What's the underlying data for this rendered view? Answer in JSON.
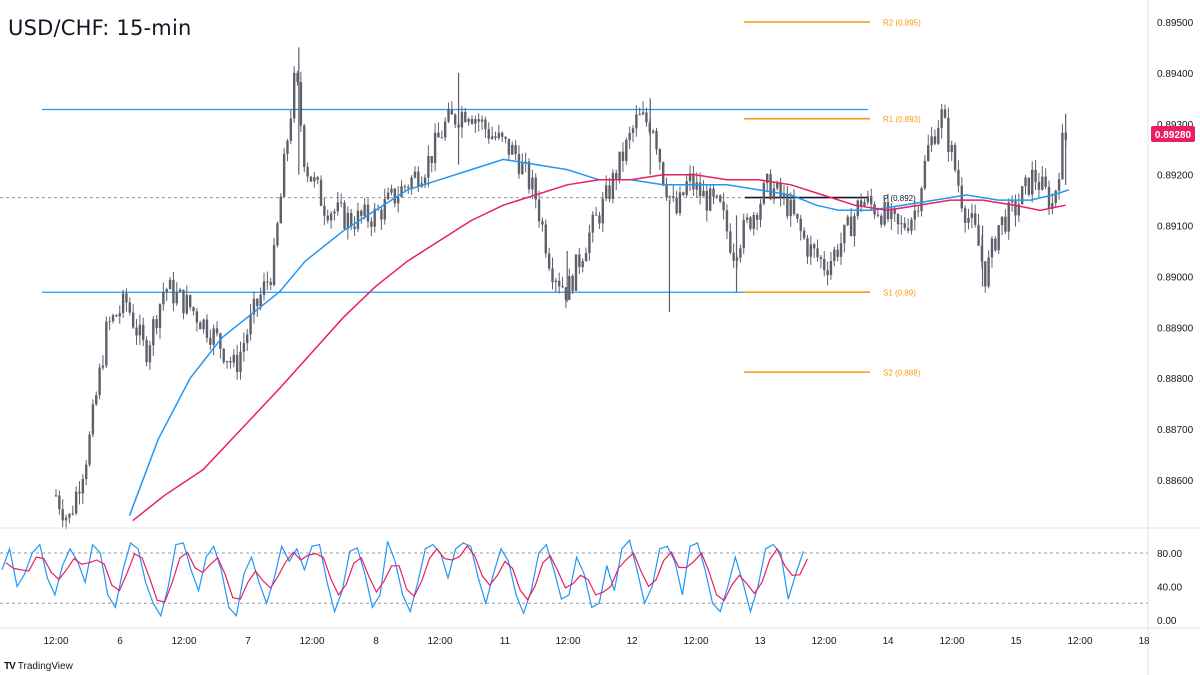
{
  "title": "USD/CHF: 15-min",
  "brand": {
    "logo": "TV",
    "name": "TradingView"
  },
  "chart_data": {
    "type": "candlestick",
    "symbol": "USD/CHF",
    "timeframe": "15-min",
    "price_axis": {
      "ticks": [
        "0.89500",
        "0.89400",
        "0.89300",
        "0.89200",
        "0.89100",
        "0.89000",
        "0.88900",
        "0.88800",
        "0.88700",
        "0.88600"
      ],
      "range": [
        0.8852,
        0.8955
      ]
    },
    "last_price": {
      "value": 0.8928,
      "label": "0.89280",
      "color": "#e91e63"
    },
    "time_axis": {
      "labels": [
        "12:00",
        "6",
        "12:00",
        "7",
        "12:00",
        "8",
        "12:00",
        "11",
        "12:00",
        "12",
        "12:00",
        "13",
        "12:00",
        "14",
        "12:00",
        "15",
        "12:00",
        "18"
      ],
      "range": [
        0,
        36
      ]
    },
    "levels": [
      {
        "name": "R2",
        "label": "R2 (0.895)",
        "value": 0.895,
        "color": "#f39c12"
      },
      {
        "name": "R1",
        "label": "R1 (0.893)",
        "value": 0.8931,
        "color": "#f39c12"
      },
      {
        "name": "P",
        "label": "P (0.892)",
        "value": 0.89155,
        "color": "#131722"
      },
      {
        "name": "S1",
        "label": "S1 (0.89)",
        "value": 0.88969,
        "color": "#f39c12"
      },
      {
        "name": "S2",
        "label": "S2 (0.888)",
        "value": 0.88812,
        "color": "#f39c12"
      }
    ],
    "range_lines": [
      {
        "name": "resistance",
        "value": 0.89328,
        "color": "#2196f3"
      },
      {
        "name": "support",
        "value": 0.88969,
        "color": "#2196f3"
      }
    ],
    "price_path": [
      [
        0,
        0.8857
      ],
      [
        0.4,
        0.8852
      ],
      [
        1.0,
        0.8866
      ],
      [
        1.6,
        0.889
      ],
      [
        2.2,
        0.8895
      ],
      [
        2.8,
        0.8885
      ],
      [
        3.4,
        0.8898
      ],
      [
        4.2,
        0.8894
      ],
      [
        5.0,
        0.8888
      ],
      [
        5.6,
        0.8882
      ],
      [
        6.2,
        0.8893
      ],
      [
        6.8,
        0.8902
      ],
      [
        7.2,
        0.8925
      ],
      [
        7.5,
        0.894
      ],
      [
        7.8,
        0.8922
      ],
      [
        8.4,
        0.8914
      ],
      [
        9.2,
        0.8911
      ],
      [
        10.0,
        0.8912
      ],
      [
        10.8,
        0.8917
      ],
      [
        11.6,
        0.8922
      ],
      [
        12.2,
        0.893
      ],
      [
        12.9,
        0.8933
      ],
      [
        13.6,
        0.8928
      ],
      [
        14.4,
        0.8924
      ],
      [
        15.0,
        0.8916
      ],
      [
        15.5,
        0.8902
      ],
      [
        16.0,
        0.8897
      ],
      [
        16.6,
        0.8907
      ],
      [
        17.2,
        0.8915
      ],
      [
        17.7,
        0.8923
      ],
      [
        18.2,
        0.8931
      ],
      [
        18.7,
        0.893
      ],
      [
        19.0,
        0.892
      ],
      [
        19.4,
        0.8912
      ],
      [
        19.8,
        0.8919
      ],
      [
        20.2,
        0.8916
      ],
      [
        20.8,
        0.8913
      ],
      [
        21.2,
        0.8905
      ],
      [
        21.7,
        0.8911
      ],
      [
        22.3,
        0.8918
      ],
      [
        22.9,
        0.8914
      ],
      [
        23.5,
        0.8906
      ],
      [
        24.1,
        0.8902
      ],
      [
        24.7,
        0.8908
      ],
      [
        25.2,
        0.8915
      ],
      [
        25.8,
        0.8913
      ],
      [
        26.4,
        0.8909
      ],
      [
        26.9,
        0.8913
      ],
      [
        27.3,
        0.8925
      ],
      [
        27.7,
        0.8932
      ],
      [
        28.0,
        0.8925
      ],
      [
        28.4,
        0.8914
      ],
      [
        28.8,
        0.8908
      ],
      [
        29.1,
        0.89
      ],
      [
        29.5,
        0.891
      ],
      [
        30.0,
        0.8913
      ],
      [
        30.6,
        0.892
      ],
      [
        31.2,
        0.8914
      ],
      [
        31.5,
        0.8926
      ],
      [
        31.7,
        0.8928
      ]
    ],
    "spikes": [
      {
        "x": 7.6,
        "high": 0.8945,
        "low": 0.892
      },
      {
        "x": 12.6,
        "high": 0.894,
        "low": 0.8922
      },
      {
        "x": 16.0,
        "high": 0.8905,
        "low": 0.8895
      },
      {
        "x": 18.6,
        "high": 0.8935,
        "low": 0.892
      },
      {
        "x": 19.2,
        "high": 0.8915,
        "low": 0.8893
      },
      {
        "x": 21.3,
        "high": 0.8912,
        "low": 0.8897
      },
      {
        "x": 29.0,
        "high": 0.891,
        "low": 0.8898
      },
      {
        "x": 31.6,
        "high": 0.8932,
        "low": 0.8918
      }
    ],
    "series": [
      {
        "name": "",
        "color": "#2196f3",
        "points": [
          [
            2.3,
            0.8853
          ],
          [
            3.2,
            0.8868
          ],
          [
            4.2,
            0.888
          ],
          [
            5.2,
            0.8888
          ],
          [
            6.2,
            0.8893
          ],
          [
            7.0,
            0.8897
          ],
          [
            7.8,
            0.8903
          ],
          [
            9.0,
            0.8909
          ],
          [
            10.0,
            0.8913
          ],
          [
            11.0,
            0.8917
          ],
          [
            12.0,
            0.8919
          ],
          [
            13.0,
            0.8921
          ],
          [
            14.0,
            0.8923
          ],
          [
            15.0,
            0.8922
          ],
          [
            16.0,
            0.8921
          ],
          [
            17.0,
            0.8919
          ],
          [
            18.0,
            0.8919
          ],
          [
            19.0,
            0.8918
          ],
          [
            20.0,
            0.8918
          ],
          [
            21.0,
            0.8918
          ],
          [
            22.0,
            0.8917
          ],
          [
            23.0,
            0.8916
          ],
          [
            23.8,
            0.8914
          ],
          [
            24.5,
            0.8913
          ],
          [
            25.5,
            0.8913
          ],
          [
            26.5,
            0.8914
          ],
          [
            27.5,
            0.8915
          ],
          [
            28.5,
            0.8916
          ],
          [
            29.5,
            0.8915
          ],
          [
            30.5,
            0.8915
          ],
          [
            31.2,
            0.8916
          ],
          [
            31.7,
            0.8917
          ]
        ]
      },
      {
        "name": "",
        "color": "#e91e63",
        "points": [
          [
            2.4,
            0.8852
          ],
          [
            3.4,
            0.8857
          ],
          [
            4.6,
            0.8862
          ],
          [
            5.8,
            0.887
          ],
          [
            7.0,
            0.8878
          ],
          [
            8.0,
            0.8885
          ],
          [
            9.0,
            0.8892
          ],
          [
            10.0,
            0.8898
          ],
          [
            11.0,
            0.8903
          ],
          [
            12.0,
            0.8907
          ],
          [
            13.0,
            0.8911
          ],
          [
            14.0,
            0.8914
          ],
          [
            15.0,
            0.8916
          ],
          [
            16.0,
            0.8918
          ],
          [
            17.0,
            0.8919
          ],
          [
            18.0,
            0.8919
          ],
          [
            19.0,
            0.892
          ],
          [
            20.0,
            0.892
          ],
          [
            21.0,
            0.8919
          ],
          [
            22.0,
            0.8919
          ],
          [
            23.0,
            0.8918
          ],
          [
            24.0,
            0.8916
          ],
          [
            25.0,
            0.8914
          ],
          [
            26.0,
            0.8913
          ],
          [
            27.0,
            0.8914
          ],
          [
            28.0,
            0.8915
          ],
          [
            29.0,
            0.8915
          ],
          [
            30.0,
            0.8914
          ],
          [
            30.8,
            0.8913
          ],
          [
            31.6,
            0.8914
          ]
        ]
      }
    ],
    "oscillator": {
      "ticks": [
        "80.00",
        "40.00",
        "0.00"
      ],
      "range": [
        0,
        100
      ],
      "bands": [
        80,
        20
      ],
      "k_color": "#2196f3",
      "d_color": "#e91e63",
      "k": [
        [
          0.0,
          60
        ],
        [
          0.3,
          85
        ],
        [
          0.6,
          40
        ],
        [
          0.9,
          55
        ],
        [
          1.2,
          80
        ],
        [
          1.5,
          90
        ],
        [
          1.8,
          50
        ],
        [
          2.1,
          30
        ],
        [
          2.4,
          65
        ],
        [
          2.7,
          85
        ],
        [
          3.0,
          70
        ],
        [
          3.3,
          45
        ],
        [
          3.6,
          90
        ],
        [
          3.9,
          80
        ],
        [
          4.2,
          30
        ],
        [
          4.5,
          15
        ],
        [
          4.8,
          60
        ],
        [
          5.1,
          92
        ],
        [
          5.4,
          85
        ],
        [
          5.7,
          45
        ],
        [
          6.0,
          20
        ],
        [
          6.3,
          5
        ],
        [
          6.6,
          40
        ],
        [
          6.9,
          90
        ],
        [
          7.2,
          92
        ],
        [
          7.5,
          60
        ],
        [
          7.8,
          35
        ],
        [
          8.1,
          75
        ],
        [
          8.4,
          88
        ],
        [
          8.7,
          60
        ],
        [
          9.0,
          15
        ],
        [
          9.3,
          5
        ],
        [
          9.6,
          55
        ],
        [
          9.9,
          75
        ],
        [
          10.2,
          45
        ],
        [
          10.5,
          20
        ],
        [
          10.8,
          50
        ],
        [
          11.1,
          88
        ],
        [
          11.4,
          70
        ],
        [
          11.7,
          85
        ],
        [
          12.0,
          60
        ],
        [
          12.3,
          88
        ],
        [
          12.6,
          90
        ],
        [
          12.9,
          45
        ],
        [
          13.2,
          10
        ],
        [
          13.5,
          35
        ],
        [
          13.8,
          82
        ],
        [
          14.1,
          86
        ],
        [
          14.4,
          55
        ],
        [
          14.7,
          15
        ],
        [
          15.0,
          30
        ],
        [
          15.3,
          94
        ],
        [
          15.6,
          70
        ],
        [
          15.9,
          30
        ],
        [
          16.2,
          10
        ],
        [
          16.5,
          45
        ],
        [
          16.8,
          85
        ],
        [
          17.1,
          90
        ],
        [
          17.4,
          80
        ],
        [
          17.7,
          50
        ],
        [
          18.0,
          85
        ],
        [
          18.3,
          92
        ],
        [
          18.6,
          88
        ],
        [
          18.9,
          50
        ],
        [
          19.2,
          20
        ],
        [
          19.5,
          55
        ],
        [
          19.8,
          85
        ],
        [
          20.1,
          70
        ],
        [
          20.4,
          30
        ],
        [
          20.7,
          8
        ],
        [
          21.0,
          35
        ],
        [
          21.3,
          80
        ],
        [
          21.6,
          90
        ],
        [
          21.9,
          60
        ],
        [
          22.2,
          25
        ],
        [
          22.5,
          30
        ],
        [
          22.8,
          75
        ],
        [
          23.1,
          55
        ],
        [
          23.4,
          15
        ],
        [
          23.7,
          20
        ],
        [
          24.0,
          65
        ],
        [
          24.3,
          35
        ],
        [
          24.6,
          85
        ],
        [
          24.9,
          95
        ],
        [
          25.2,
          60
        ],
        [
          25.5,
          20
        ],
        [
          25.8,
          40
        ],
        [
          26.1,
          85
        ],
        [
          26.4,
          88
        ],
        [
          26.7,
          70
        ],
        [
          27.0,
          30
        ],
        [
          27.3,
          88
        ],
        [
          27.6,
          92
        ],
        [
          27.9,
          60
        ],
        [
          28.2,
          20
        ],
        [
          28.5,
          10
        ],
        [
          28.8,
          40
        ],
        [
          29.1,
          75
        ],
        [
          29.4,
          45
        ],
        [
          29.7,
          10
        ],
        [
          30.0,
          40
        ],
        [
          30.3,
          85
        ],
        [
          30.6,
          90
        ],
        [
          30.9,
          80
        ],
        [
          31.2,
          25
        ],
        [
          31.5,
          55
        ],
        [
          31.8,
          82
        ]
      ]
    }
  }
}
